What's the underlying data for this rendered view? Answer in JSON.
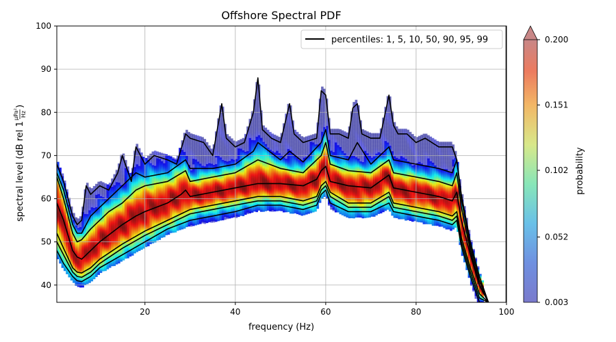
{
  "chart_data": {
    "type": "heatmap",
    "title": "Offshore Spectral PDF",
    "xlabel": "frequency (Hz)",
    "ylabel": "spectral level (dB rel 1",
    "ylabel_unit_num": "µPa²",
    "ylabel_unit_den": "Hz",
    "ylabel_close": ")",
    "xlim": [
      0.5,
      100
    ],
    "ylim": [
      36,
      100
    ],
    "xticks": [
      20,
      40,
      60,
      80,
      100
    ],
    "yticks": [
      40,
      50,
      60,
      70,
      80,
      90,
      100
    ],
    "grid": true,
    "legend": {
      "label": "percentiles: 1, 5, 10, 50, 90, 95, 99",
      "placement": "top-right"
    },
    "colorbar": {
      "label": "probability",
      "ticks": [
        "0.003",
        "0.052",
        "0.102",
        "0.151",
        "0.200"
      ],
      "range": [
        0.003,
        0.2
      ],
      "extend": "max",
      "colormap": "jet"
    },
    "percentile_series": [
      {
        "percentile": 1,
        "x": [
          0.5,
          2,
          4,
          5,
          6,
          8,
          10,
          15,
          20,
          25,
          30,
          35,
          40,
          45,
          50,
          55,
          58,
          59,
          60,
          61,
          65,
          70,
          74,
          75,
          80,
          85,
          88,
          89,
          90,
          92,
          94,
          96
        ],
        "y": [
          48,
          45,
          42,
          41,
          40.8,
          42,
          44,
          47,
          50,
          53,
          55,
          56,
          57,
          58.5,
          58.5,
          57.5,
          58.5,
          61,
          62,
          59,
          57,
          57,
          59,
          57,
          56,
          55,
          54,
          55,
          49,
          42,
          36,
          36
        ]
      },
      {
        "percentile": 5,
        "x": [
          0.5,
          2,
          4,
          5,
          6,
          8,
          10,
          15,
          20,
          25,
          30,
          35,
          40,
          45,
          50,
          55,
          58,
          59,
          60,
          61,
          65,
          70,
          74,
          75,
          80,
          85,
          88,
          89,
          90,
          92,
          94,
          96
        ],
        "y": [
          50,
          47,
          43,
          42,
          41.8,
          43,
          45,
          48.5,
          51.5,
          54,
          56.5,
          57.5,
          58.5,
          59.5,
          59.5,
          58.5,
          59.5,
          62,
          63,
          60.5,
          58,
          58,
          60.5,
          58,
          57,
          56,
          55,
          56,
          50,
          43,
          37,
          36
        ]
      },
      {
        "percentile": 10,
        "x": [
          0.5,
          2,
          4,
          5,
          6,
          8,
          10,
          15,
          20,
          25,
          30,
          35,
          40,
          45,
          50,
          55,
          58,
          59,
          60,
          61,
          65,
          70,
          74,
          75,
          80,
          85,
          88,
          89,
          90,
          92,
          94,
          96
        ],
        "y": [
          52,
          48.5,
          44,
          43,
          42.8,
          44,
          46,
          49.5,
          52.5,
          55,
          57.5,
          58.5,
          59.5,
          60.5,
          60.5,
          59.5,
          60.5,
          63,
          64,
          61.5,
          59,
          59,
          61.5,
          59,
          58,
          57,
          56,
          57,
          51,
          44,
          38,
          36
        ]
      },
      {
        "percentile": 50,
        "x": [
          0.5,
          2,
          4,
          5,
          6,
          8,
          10,
          15,
          18,
          20,
          25,
          28,
          29,
          30,
          35,
          40,
          45,
          50,
          55,
          58,
          59,
          60,
          61,
          65,
          70,
          74,
          75,
          80,
          85,
          88,
          89,
          90,
          92,
          94,
          96
        ],
        "y": [
          59,
          55,
          48,
          46.5,
          46,
          48,
          50,
          54,
          56,
          57,
          59,
          61,
          62,
          60.5,
          61.5,
          62.5,
          63.5,
          63.5,
          63,
          64.5,
          66.5,
          67.5,
          64,
          63,
          62.5,
          65.5,
          62.5,
          61.5,
          60.5,
          59.5,
          61.5,
          55,
          47,
          40,
          36
        ]
      },
      {
        "percentile": 90,
        "x": [
          0.5,
          2,
          4,
          5,
          6,
          8,
          10,
          12,
          15,
          18,
          20,
          25,
          29,
          30,
          35,
          40,
          45,
          50,
          55,
          59,
          60,
          61,
          65,
          70,
          74,
          75,
          80,
          85,
          88,
          89,
          90,
          92,
          94,
          96
        ],
        "y": [
          65,
          60,
          52,
          50,
          50.5,
          53,
          55,
          57,
          59,
          62,
          63,
          64,
          66.5,
          64,
          65,
          66,
          69,
          67,
          66,
          70,
          73,
          68,
          66.5,
          66,
          69,
          66,
          65,
          64,
          63,
          66,
          58,
          48,
          40,
          36
        ]
      },
      {
        "percentile": 95,
        "x": [
          0.5,
          2,
          4,
          5,
          6,
          8,
          10,
          12,
          15,
          18,
          20,
          25,
          29,
          30,
          35,
          40,
          44,
          45,
          50,
          52,
          55,
          59,
          60,
          61,
          65,
          67,
          70,
          74,
          75,
          80,
          85,
          88,
          89,
          90,
          92,
          94,
          96
        ],
        "y": [
          66,
          62,
          54,
          52,
          52,
          56,
          58,
          60,
          63,
          66,
          65,
          66,
          69,
          67,
          67,
          68,
          71,
          73,
          69,
          71,
          68.5,
          73,
          76,
          70,
          69,
          73,
          68,
          72,
          69,
          68,
          67,
          66,
          69,
          60,
          49,
          41,
          36
        ]
      },
      {
        "percentile": 99,
        "x": [
          0.5,
          2,
          4,
          5,
          6,
          7,
          8,
          10,
          12,
          14,
          15,
          16,
          17,
          18,
          20,
          22,
          25,
          27,
          29,
          30,
          33,
          35,
          37,
          38,
          40,
          42,
          44,
          45,
          46,
          48,
          50,
          52,
          53,
          55,
          58,
          59,
          60,
          61,
          63,
          65,
          66,
          67,
          68,
          70,
          72,
          74,
          75,
          76,
          78,
          80,
          82,
          85,
          88,
          89,
          90,
          92,
          94,
          96
        ],
        "y": [
          68,
          64,
          56,
          54,
          55,
          63,
          61,
          63,
          62,
          66,
          70,
          67,
          64,
          72,
          68,
          70,
          69,
          68,
          75,
          74,
          73,
          70,
          82,
          74,
          72,
          73,
          80,
          88,
          76,
          74,
          73,
          82,
          75,
          73,
          74,
          85,
          84,
          75,
          75,
          74,
          81,
          82,
          75,
          74,
          74,
          84,
          77,
          75,
          75,
          73,
          74,
          72,
          72,
          69,
          61,
          50,
          42,
          36
        ]
      }
    ]
  }
}
